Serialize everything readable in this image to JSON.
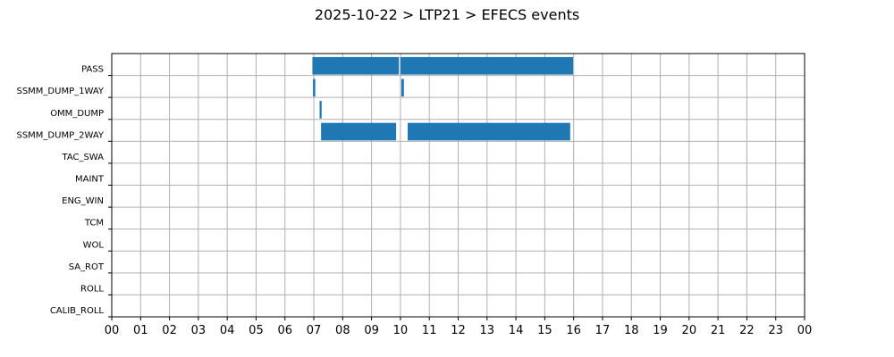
{
  "chart_data": {
    "type": "bar",
    "orientation": "horizontal-timeline",
    "title": "2025-10-22 > LTP21 > EFECS events",
    "xlabel": "",
    "ylabel": "",
    "xlim": [
      0,
      24
    ],
    "grid": true,
    "bar_color": "#1f77b4",
    "x_ticks": [
      "00",
      "01",
      "02",
      "03",
      "04",
      "05",
      "06",
      "07",
      "08",
      "09",
      "10",
      "11",
      "12",
      "13",
      "14",
      "15",
      "16",
      "17",
      "18",
      "19",
      "20",
      "21",
      "22",
      "23",
      "00"
    ],
    "categories": [
      "PASS",
      "SSMM_DUMP_1WAY",
      "OMM_DUMP",
      "SSMM_DUMP_2WAY",
      "TAC_SWA",
      "MAINT",
      "ENG_WIN",
      "TCM",
      "WOL",
      "SA_ROT",
      "ROLL",
      "CALIB_ROLL"
    ],
    "events": [
      {
        "category": "PASS",
        "start": 6.95,
        "end": 9.95
      },
      {
        "category": "PASS",
        "start": 10.0,
        "end": 15.98
      },
      {
        "category": "SSMM_DUMP_1WAY",
        "start": 6.97,
        "end": 7.05
      },
      {
        "category": "SSMM_DUMP_1WAY",
        "start": 10.03,
        "end": 10.12
      },
      {
        "category": "OMM_DUMP",
        "start": 7.2,
        "end": 7.27
      },
      {
        "category": "SSMM_DUMP_2WAY",
        "start": 7.25,
        "end": 9.85
      },
      {
        "category": "SSMM_DUMP_2WAY",
        "start": 10.25,
        "end": 15.88
      }
    ]
  }
}
